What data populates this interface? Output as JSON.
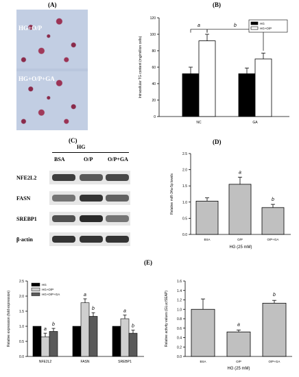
{
  "panels": {
    "A": "(A)",
    "B": "(B)",
    "C": "(C)",
    "D": "(D)",
    "E": "(E)"
  },
  "micrographs": {
    "top_label": "HG+O/P",
    "bottom_label": "HG+O/P+GA"
  },
  "western": {
    "group": "HG",
    "lanes": [
      "BSA",
      "O/P",
      "O/P+GA"
    ],
    "rows": [
      {
        "label": "NFE2L2",
        "intensity": [
          0.9,
          0.75,
          0.85
        ]
      },
      {
        "label": "FASN",
        "intensity": [
          0.6,
          0.95,
          0.7
        ]
      },
      {
        "label": "SREBP1",
        "intensity": [
          0.8,
          1.0,
          0.6
        ]
      },
      {
        "label": "β-actin",
        "intensity": [
          0.95,
          0.95,
          0.95
        ]
      }
    ]
  },
  "colors": {
    "black_bar": "#000000",
    "white_bar": "#ffffff",
    "light_gray": "#cfcfcf",
    "dark_gray": "#5a5a5a",
    "bar_gray": "#c0c0c0"
  },
  "chart_data": [
    {
      "id": "B",
      "type": "bar",
      "categories": [
        "NC",
        "GA"
      ],
      "series": [
        {
          "name": "HG",
          "values": [
            52,
            52
          ],
          "errors": [
            8,
            7
          ]
        },
        {
          "name": "HG+O/P",
          "values": [
            92,
            70
          ],
          "errors": [
            8,
            7
          ]
        }
      ],
      "ylabel": "Intracellular TG content (mg/million cells)",
      "ylim": [
        0,
        120
      ],
      "yticks": [
        0,
        20,
        40,
        60,
        80,
        100,
        120
      ],
      "legend": "top-right",
      "annotations": [
        "a",
        "b"
      ]
    },
    {
      "id": "D",
      "type": "bar",
      "categories": [
        "BSA",
        "O/P",
        "O/P+GA"
      ],
      "values": [
        1.03,
        1.55,
        0.83
      ],
      "errors": [
        0.1,
        0.22,
        0.1
      ],
      "annotations": [
        "",
        "a",
        "b"
      ],
      "ylabel": "Relative miR-34a-5p levels",
      "xlabel": "HG (25 mM)",
      "ylim": [
        0,
        2.5
      ],
      "yticks": [
        "0.0",
        "0.5",
        "1.0",
        "1.5",
        "2.0",
        "2.5"
      ]
    },
    {
      "id": "E1",
      "type": "bar",
      "categories": [
        "NFE2L2",
        "FASN",
        "SREBP1"
      ],
      "series": [
        {
          "name": "HG",
          "values": [
            1.0,
            1.0,
            1.0
          ],
          "errors": [
            0,
            0,
            0
          ]
        },
        {
          "name": "HG+O/P",
          "values": [
            0.65,
            1.78,
            1.25
          ],
          "errors": [
            0.12,
            0.13,
            0.12
          ]
        },
        {
          "name": "HG+O/P+GA",
          "values": [
            0.83,
            1.33,
            0.77
          ],
          "errors": [
            0.1,
            0.12,
            0.1
          ]
        }
      ],
      "annotations": [
        [
          "",
          "a",
          "b"
        ],
        [
          "",
          "a",
          "b"
        ],
        [
          "",
          "a",
          "b"
        ]
      ],
      "ylabel": "Relative expression (fold expression)",
      "ylim": [
        0,
        2.5
      ],
      "yticks": [
        "0.0",
        "0.5",
        "1.0",
        "1.5",
        "2.0",
        "2.5"
      ],
      "legend": "top-left"
    },
    {
      "id": "E2",
      "type": "bar",
      "categories": [
        "BSA",
        "O/P",
        "O/P+GA"
      ],
      "values": [
        1.0,
        0.52,
        1.13
      ],
      "errors": [
        0.22,
        0.04,
        0.06
      ],
      "annotations": [
        "",
        "a",
        "b"
      ],
      "ylabel": "Relative activity values (GLuc/SEAP)",
      "xlabel": "HG (25 mM)",
      "ylim": [
        0,
        1.6
      ],
      "yticks": [
        "0.0",
        "0.2",
        "0.4",
        "0.6",
        "0.8",
        "1.0",
        "1.2",
        "1.4",
        "1.6"
      ]
    }
  ]
}
